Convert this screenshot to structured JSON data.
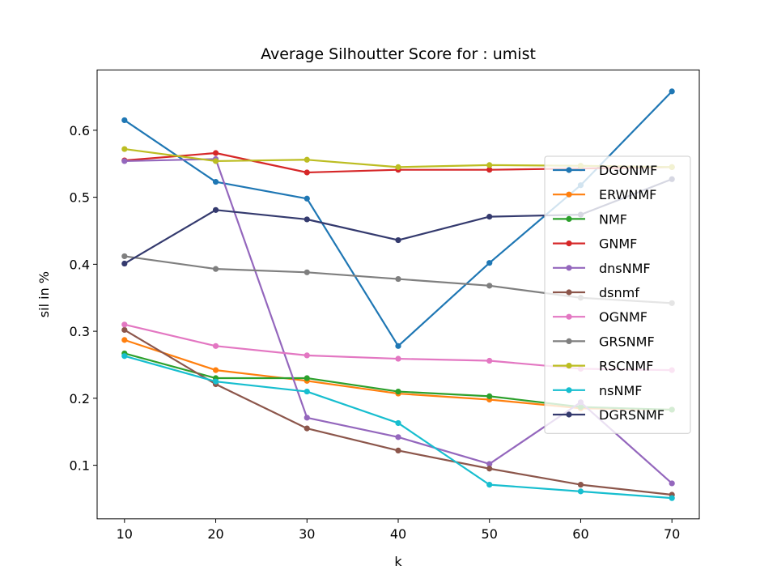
{
  "chart_data": {
    "type": "line",
    "title": "Average Silhoutter Score for : umist",
    "xlabel": "k",
    "ylabel": "sil in %",
    "x": [
      10,
      20,
      30,
      40,
      50,
      60,
      70
    ],
    "xlim": [
      7,
      73
    ],
    "ylim": [
      0.02,
      0.69
    ],
    "xticks": [
      10,
      20,
      30,
      40,
      50,
      60,
      70
    ],
    "yticks": [
      0.1,
      0.2,
      0.3,
      0.4,
      0.5,
      0.6
    ],
    "grid": false,
    "legend_position": "center-right",
    "series": [
      {
        "name": "DGONMF",
        "color": "#1f77b4",
        "values": [
          0.615,
          0.523,
          0.498,
          0.278,
          0.402,
          0.518,
          0.658
        ]
      },
      {
        "name": "ERWNMF",
        "color": "#ff7f0e",
        "values": [
          0.287,
          0.242,
          0.226,
          0.207,
          0.198,
          0.185,
          0.183
        ]
      },
      {
        "name": "NMF",
        "color": "#2ca02c",
        "values": [
          0.267,
          0.23,
          0.23,
          0.21,
          0.203,
          0.187,
          0.183
        ]
      },
      {
        "name": "GNMF",
        "color": "#d62728",
        "values": [
          0.555,
          0.566,
          0.537,
          0.541,
          0.541,
          0.543,
          0.545
        ]
      },
      {
        "name": "dnsNMF",
        "color": "#9467bd",
        "values": [
          0.554,
          0.557,
          0.171,
          0.142,
          0.102,
          0.194,
          0.073
        ]
      },
      {
        "name": "dsnmf",
        "color": "#8c564b",
        "values": [
          0.302,
          0.221,
          0.155,
          0.122,
          0.095,
          0.071,
          0.056
        ]
      },
      {
        "name": "OGNMF",
        "color": "#e377c2",
        "values": [
          0.31,
          0.278,
          0.264,
          0.259,
          0.256,
          0.244,
          0.242
        ]
      },
      {
        "name": "GRSNMF",
        "color": "#7f7f7f",
        "values": [
          0.412,
          0.393,
          0.388,
          0.378,
          0.368,
          0.35,
          0.342
        ]
      },
      {
        "name": "RSCNMF",
        "color": "#bcbd22",
        "values": [
          0.572,
          0.554,
          0.556,
          0.545,
          0.548,
          0.547,
          0.545
        ]
      },
      {
        "name": "nsNMF",
        "color": "#17becf",
        "values": [
          0.263,
          0.225,
          0.21,
          0.163,
          0.071,
          0.061,
          0.051
        ]
      },
      {
        "name": "DGRSNMF",
        "color": "#343a6e",
        "values": [
          0.401,
          0.481,
          0.467,
          0.436,
          0.471,
          0.474,
          0.527
        ]
      }
    ]
  }
}
